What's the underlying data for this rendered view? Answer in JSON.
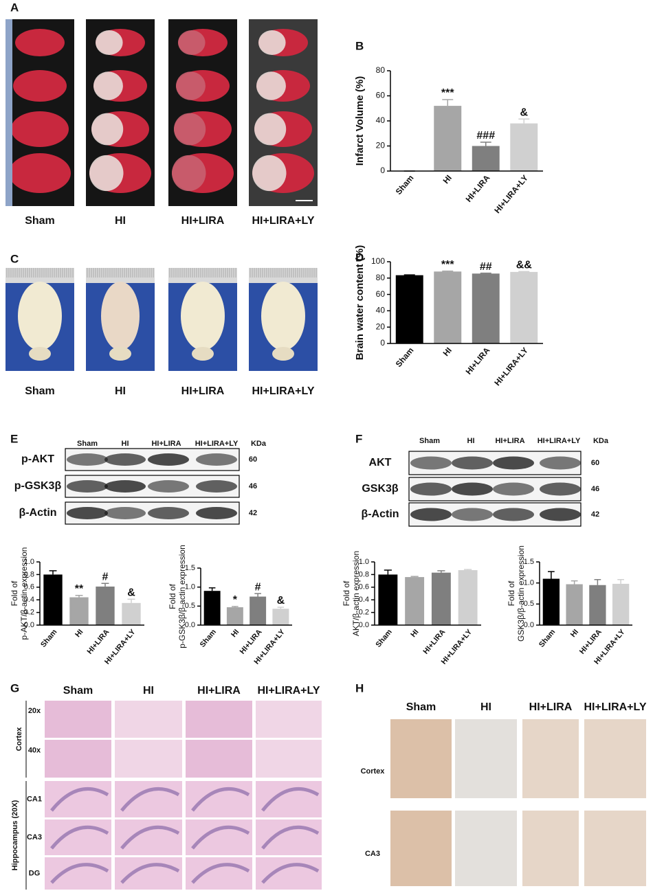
{
  "panel_labels": [
    "A",
    "B",
    "C",
    "D",
    "E",
    "F",
    "G",
    "H"
  ],
  "panel_a": {
    "groups": [
      "Sham",
      "HI",
      "HI+LIRA",
      "HI+LIRA+LY"
    ]
  },
  "panel_c": {
    "groups": [
      "Sham",
      "HI",
      "HI+LIRA",
      "HI+LIRA+LY"
    ]
  },
  "panel_e": {
    "groups": [
      "Sham",
      "HI",
      "HI+LIRA",
      "HI+LIRA+LY"
    ],
    "unit": "KDa",
    "rows": [
      {
        "label": "p-AKT",
        "kda": "60"
      },
      {
        "label": "p-GSK3β",
        "kda": "46"
      },
      {
        "label": "β-Actin",
        "kda": "42"
      }
    ]
  },
  "panel_f": {
    "groups": [
      "Sham",
      "HI",
      "HI+LIRA",
      "HI+LIRA+LY"
    ],
    "unit": "KDa",
    "rows": [
      {
        "label": "AKT",
        "kda": "60"
      },
      {
        "label": "GSK3β",
        "kda": "46"
      },
      {
        "label": "β-Actin",
        "kda": "42"
      }
    ]
  },
  "panel_g": {
    "groups": [
      "Sham",
      "HI",
      "HI+LIRA",
      "HI+LIRA+LY"
    ],
    "cortex": "Cortex",
    "hippocampus": "Hippocampus (20X)",
    "row_labels": [
      "20x",
      "40x",
      "CA1",
      "CA3",
      "DG"
    ]
  },
  "panel_h": {
    "groups": [
      "Sham",
      "HI",
      "HI+LIRA",
      "HI+LIRA+LY"
    ],
    "row_labels": [
      "Cortex",
      "CA3"
    ]
  },
  "chart_data": [
    {
      "type": "bar",
      "ylabel": [
        "Infarct Volume (%)"
      ],
      "categories": [
        "Sham",
        "HI",
        "HI+LIRA",
        "HI+LIRA+LY"
      ],
      "values": [
        0,
        52,
        20,
        38
      ],
      "errors": [
        0,
        5,
        3,
        3.5
      ],
      "annotations": [
        null,
        "***",
        "###",
        "&"
      ],
      "colors": [
        "#000000",
        "#a6a6a6",
        "#7f7f7f",
        "#d0d0d0"
      ],
      "ylim": [
        0,
        80
      ],
      "yticks": [
        0,
        20,
        40,
        60,
        80
      ]
    },
    {
      "type": "bar",
      "ylabel": [
        "Brain water content (%)"
      ],
      "categories": [
        "Sham",
        "HI",
        "HI+LIRA",
        "HI+LIRA+LY"
      ],
      "values": [
        83.5,
        88,
        85.5,
        87.5
      ],
      "errors": [
        0.4,
        0.6,
        0.5,
        0.5
      ],
      "annotations": [
        null,
        "***",
        "##",
        "&&"
      ],
      "colors": [
        "#000000",
        "#a6a6a6",
        "#7f7f7f",
        "#d0d0d0"
      ],
      "ylim": [
        0,
        100
      ],
      "yticks": [
        0,
        20,
        40,
        60,
        80,
        100
      ]
    },
    {
      "type": "bar",
      "ylabel": [
        "Fold of",
        "p-AKT/β-actin expression"
      ],
      "categories": [
        "Sham",
        "HI",
        "HI+LIRA",
        "HI+LIRA+LY"
      ],
      "values": [
        0.8,
        0.44,
        0.61,
        0.35
      ],
      "errors": [
        0.06,
        0.03,
        0.05,
        0.06
      ],
      "annotations": [
        null,
        "**",
        "#",
        "&"
      ],
      "colors": [
        "#000000",
        "#a6a6a6",
        "#7f7f7f",
        "#d0d0d0"
      ],
      "ylim": [
        0,
        1
      ],
      "yticks": [
        {
          "value": 0,
          "label": "0.0"
        },
        0.2,
        0.4,
        0.6,
        0.8,
        {
          "value": 1,
          "label": "1.0"
        }
      ]
    },
    {
      "type": "bar",
      "ylabel": [
        "Fold of",
        "p-GSK3β/β-actin expression"
      ],
      "categories": [
        "Sham",
        "HI",
        "HI+LIRA",
        "HI+LIRA+LY"
      ],
      "values": [
        0.9,
        0.47,
        0.75,
        0.43
      ],
      "errors": [
        0.08,
        0.02,
        0.08,
        0.04
      ],
      "annotations": [
        null,
        "*",
        "#",
        "&"
      ],
      "colors": [
        "#000000",
        "#a6a6a6",
        "#7f7f7f",
        "#d0d0d0"
      ],
      "ylim": [
        0,
        1.5
      ],
      "yticks": [
        {
          "value": 0,
          "label": "0.0"
        },
        0.5,
        {
          "value": 1,
          "label": "1.0"
        },
        1.5
      ]
    },
    {
      "type": "bar",
      "ylabel": [
        "Fold of",
        "AKT/β-actin expression"
      ],
      "categories": [
        "Sham",
        "HI",
        "HI+LIRA",
        "HI+LIRA+LY"
      ],
      "values": [
        0.8,
        0.76,
        0.83,
        0.87
      ],
      "errors": [
        0.07,
        0.01,
        0.03,
        0.01
      ],
      "colors": [
        "#000000",
        "#a6a6a6",
        "#7f7f7f",
        "#d0d0d0"
      ],
      "ylim": [
        0,
        1
      ],
      "yticks": [
        {
          "value": 0,
          "label": "0.0"
        },
        0.2,
        0.4,
        0.6,
        0.8,
        {
          "value": 1,
          "label": "1.0"
        }
      ]
    },
    {
      "type": "bar",
      "ylabel": [
        "Fold of",
        "GSK3β/β-actin expression"
      ],
      "categories": [
        "Sham",
        "HI",
        "HI+LIRA",
        "HI+LIRA+LY"
      ],
      "values": [
        1.1,
        0.97,
        0.95,
        0.98
      ],
      "errors": [
        0.17,
        0.08,
        0.13,
        0.1
      ],
      "colors": [
        "#000000",
        "#a6a6a6",
        "#7f7f7f",
        "#d0d0d0"
      ],
      "ylim": [
        0,
        1.5
      ],
      "yticks": [
        {
          "value": 0,
          "label": "0.0"
        },
        0.5,
        {
          "value": 1,
          "label": "1.0"
        },
        1.5
      ]
    }
  ]
}
